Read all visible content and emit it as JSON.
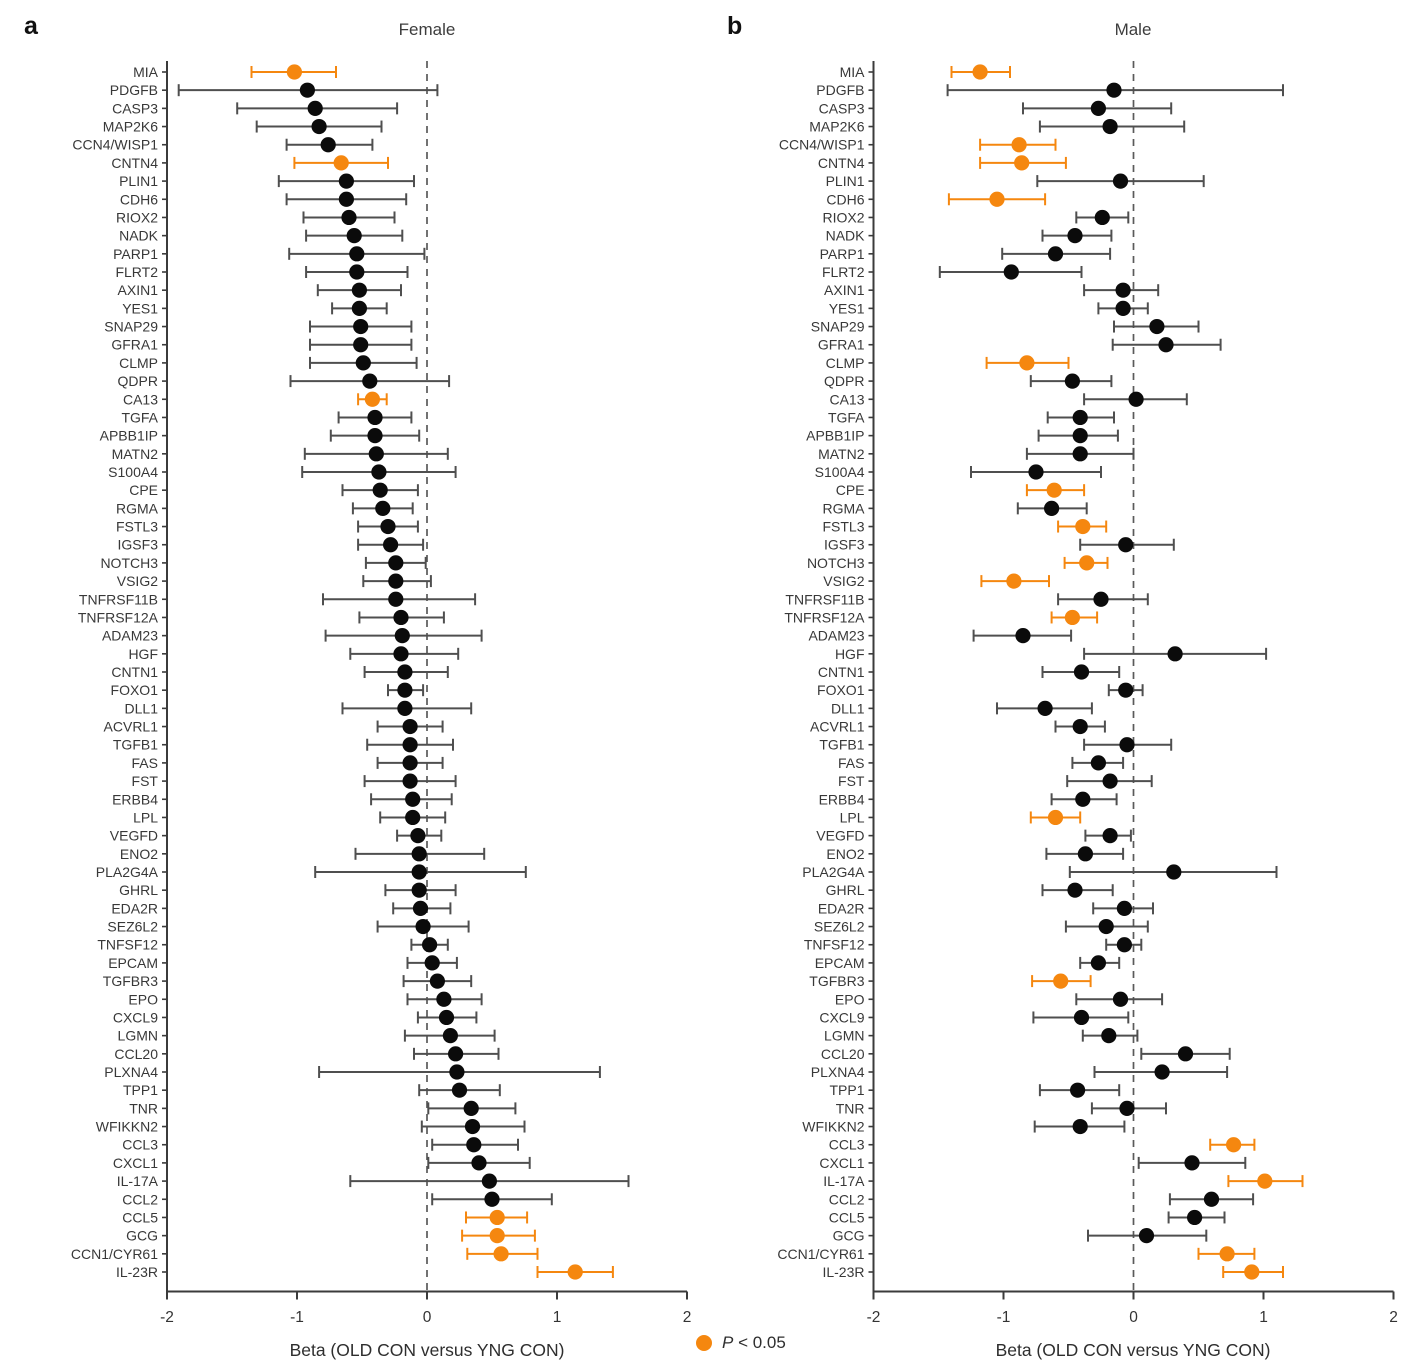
{
  "figure": {
    "panel_a": {
      "letter": "a",
      "title": "Female",
      "xlabel": "Beta (OLD CON versus YNG CON)"
    },
    "panel_b": {
      "letter": "b",
      "title": "Male",
      "xlabel": "Beta (OLD CON versus YNG CON)"
    },
    "legend": {
      "label_italic": "P",
      "label_rest": " < 0.05"
    }
  },
  "colors": {
    "significant": "#F5870F",
    "point": "#0b0b0b",
    "errorbar": "#4f4f4f",
    "spine": "#3b3b3b",
    "dashed": "#5a5a5a",
    "gene_text": "#383838",
    "tick_text": "#333333"
  },
  "chart_data": [
    {
      "type": "scatter",
      "subtype": "forest-plot",
      "panel": "a",
      "title": "Female",
      "xlabel": "Beta (OLD CON versus YNG CON)",
      "xlim": [
        -2,
        2
      ],
      "xticks": [
        "-2",
        "-1",
        "0",
        "1",
        "2"
      ],
      "zero_line": 0,
      "legend_note": "orange = P < 0.05",
      "categories": [
        "MIA",
        "PDGFB",
        "CASP3",
        "MAP2K6",
        "CCN4/WISP1",
        "CNTN4",
        "PLIN1",
        "CDH6",
        "RIOX2",
        "NADK",
        "PARP1",
        "FLRT2",
        "AXIN1",
        "YES1",
        "SNAP29",
        "GFRA1",
        "CLMP",
        "QDPR",
        "CA13",
        "TGFA",
        "APBB1IP",
        "MATN2",
        "S100A4",
        "CPE",
        "RGMA",
        "FSTL3",
        "IGSF3",
        "NOTCH3",
        "VSIG2",
        "TNFRSF11B",
        "TNFRSF12A",
        "ADAM23",
        "HGF",
        "CNTN1",
        "FOXO1",
        "DLL1",
        "ACVRL1",
        "TGFB1",
        "FAS",
        "FST",
        "ERBB4",
        "LPL",
        "VEGFD",
        "ENO2",
        "PLA2G4A",
        "GHRL",
        "EDA2R",
        "SEZ6L2",
        "TNFSF12",
        "EPCAM",
        "TGFBR3",
        "EPO",
        "CXCL9",
        "LGMN",
        "CCL20",
        "PLXNA4",
        "TPP1",
        "TNR",
        "WFIKKN2",
        "CCL3",
        "CXCL1",
        "IL-17A",
        "CCL2",
        "CCL5",
        "GCG",
        "CCN1/CYR61",
        "IL-23R"
      ],
      "points": [
        [
          -1.02,
          -1.35,
          -0.7,
          1
        ],
        [
          -0.92,
          -1.91,
          0.08,
          0
        ],
        [
          -0.86,
          -1.46,
          -0.23,
          0
        ],
        [
          -0.83,
          -1.31,
          -0.35,
          0
        ],
        [
          -0.76,
          -1.08,
          -0.42,
          0
        ],
        [
          -0.66,
          -1.02,
          -0.3,
          1
        ],
        [
          -0.62,
          -1.14,
          -0.1,
          0
        ],
        [
          -0.62,
          -1.08,
          -0.16,
          0
        ],
        [
          -0.6,
          -0.95,
          -0.25,
          0
        ],
        [
          -0.56,
          -0.93,
          -0.19,
          0
        ],
        [
          -0.54,
          -1.06,
          -0.02,
          0
        ],
        [
          -0.54,
          -0.93,
          -0.15,
          0
        ],
        [
          -0.52,
          -0.84,
          -0.2,
          0
        ],
        [
          -0.52,
          -0.73,
          -0.31,
          0
        ],
        [
          -0.51,
          -0.9,
          -0.12,
          0
        ],
        [
          -0.51,
          -0.9,
          -0.12,
          0
        ],
        [
          -0.49,
          -0.9,
          -0.08,
          0
        ],
        [
          -0.44,
          -1.05,
          0.17,
          0
        ],
        [
          -0.42,
          -0.53,
          -0.31,
          1
        ],
        [
          -0.4,
          -0.68,
          -0.12,
          0
        ],
        [
          -0.4,
          -0.74,
          -0.06,
          0
        ],
        [
          -0.39,
          -0.94,
          0.16,
          0
        ],
        [
          -0.37,
          -0.96,
          0.22,
          0
        ],
        [
          -0.36,
          -0.65,
          -0.07,
          0
        ],
        [
          -0.34,
          -0.57,
          -0.11,
          0
        ],
        [
          -0.3,
          -0.53,
          -0.07,
          0
        ],
        [
          -0.28,
          -0.53,
          -0.03,
          0
        ],
        [
          -0.24,
          -0.47,
          -0.01,
          0
        ],
        [
          -0.24,
          -0.49,
          0.03,
          0
        ],
        [
          -0.24,
          -0.8,
          0.37,
          0
        ],
        [
          -0.2,
          -0.52,
          0.13,
          0
        ],
        [
          -0.19,
          -0.78,
          0.42,
          0
        ],
        [
          -0.2,
          -0.59,
          0.24,
          0
        ],
        [
          -0.17,
          -0.48,
          0.16,
          0
        ],
        [
          -0.17,
          -0.3,
          -0.03,
          0
        ],
        [
          -0.17,
          -0.65,
          0.34,
          0
        ],
        [
          -0.13,
          -0.38,
          0.12,
          0
        ],
        [
          -0.13,
          -0.46,
          0.2,
          0
        ],
        [
          -0.13,
          -0.38,
          0.12,
          0
        ],
        [
          -0.13,
          -0.48,
          0.22,
          0
        ],
        [
          -0.11,
          -0.43,
          0.19,
          0
        ],
        [
          -0.11,
          -0.36,
          0.14,
          0
        ],
        [
          -0.07,
          -0.23,
          0.11,
          0
        ],
        [
          -0.06,
          -0.55,
          0.44,
          0
        ],
        [
          -0.06,
          -0.86,
          0.76,
          0
        ],
        [
          -0.06,
          -0.32,
          0.22,
          0
        ],
        [
          -0.05,
          -0.26,
          0.18,
          0
        ],
        [
          -0.03,
          -0.38,
          0.32,
          0
        ],
        [
          0.02,
          -0.12,
          0.16,
          0
        ],
        [
          0.04,
          -0.15,
          0.23,
          0
        ],
        [
          0.08,
          -0.18,
          0.34,
          0
        ],
        [
          0.13,
          -0.15,
          0.42,
          0
        ],
        [
          0.15,
          -0.07,
          0.38,
          0
        ],
        [
          0.18,
          -0.17,
          0.52,
          0
        ],
        [
          0.22,
          -0.1,
          0.55,
          0
        ],
        [
          0.23,
          -0.83,
          1.33,
          0
        ],
        [
          0.25,
          -0.06,
          0.56,
          0
        ],
        [
          0.34,
          0.01,
          0.68,
          0
        ],
        [
          0.35,
          -0.04,
          0.75,
          0
        ],
        [
          0.36,
          0.04,
          0.7,
          0
        ],
        [
          0.4,
          0.01,
          0.79,
          0
        ],
        [
          0.48,
          -0.59,
          1.55,
          0
        ],
        [
          0.5,
          0.04,
          0.96,
          0
        ],
        [
          0.54,
          0.3,
          0.77,
          1
        ],
        [
          0.54,
          0.27,
          0.83,
          1
        ],
        [
          0.57,
          0.31,
          0.85,
          1
        ],
        [
          1.14,
          0.85,
          1.43,
          1
        ]
      ]
    },
    {
      "type": "scatter",
      "subtype": "forest-plot",
      "panel": "b",
      "title": "Male",
      "xlabel": "Beta (OLD CON versus YNG CON)",
      "xlim": [
        -2,
        2
      ],
      "xticks": [
        "-2",
        "-1",
        "0",
        "1",
        "2"
      ],
      "zero_line": 0,
      "legend_note": "orange = P < 0.05",
      "categories": [
        "MIA",
        "PDGFB",
        "CASP3",
        "MAP2K6",
        "CCN4/WISP1",
        "CNTN4",
        "PLIN1",
        "CDH6",
        "RIOX2",
        "NADK",
        "PARP1",
        "FLRT2",
        "AXIN1",
        "YES1",
        "SNAP29",
        "GFRA1",
        "CLMP",
        "QDPR",
        "CA13",
        "TGFA",
        "APBB1IP",
        "MATN2",
        "S100A4",
        "CPE",
        "RGMA",
        "FSTL3",
        "IGSF3",
        "NOTCH3",
        "VSIG2",
        "TNFRSF11B",
        "TNFRSF12A",
        "ADAM23",
        "HGF",
        "CNTN1",
        "FOXO1",
        "DLL1",
        "ACVRL1",
        "TGFB1",
        "FAS",
        "FST",
        "ERBB4",
        "LPL",
        "VEGFD",
        "ENO2",
        "PLA2G4A",
        "GHRL",
        "EDA2R",
        "SEZ6L2",
        "TNFSF12",
        "EPCAM",
        "TGFBR3",
        "EPO",
        "CXCL9",
        "LGMN",
        "CCL20",
        "PLXNA4",
        "TPP1",
        "TNR",
        "WFIKKN2",
        "CCL3",
        "CXCL1",
        "IL-17A",
        "CCL2",
        "CCL5",
        "GCG",
        "CCN1/CYR61",
        "IL-23R"
      ],
      "points": [
        [
          -1.18,
          -1.4,
          -0.95,
          1
        ],
        [
          -0.15,
          -1.43,
          1.15,
          0
        ],
        [
          -0.27,
          -0.85,
          0.29,
          0
        ],
        [
          -0.18,
          -0.72,
          0.39,
          0
        ],
        [
          -0.88,
          -1.18,
          -0.6,
          1
        ],
        [
          -0.86,
          -1.18,
          -0.52,
          1
        ],
        [
          -0.1,
          -0.74,
          0.54,
          0
        ],
        [
          -1.05,
          -1.42,
          -0.68,
          1
        ],
        [
          -0.24,
          -0.44,
          -0.04,
          0
        ],
        [
          -0.45,
          -0.7,
          -0.17,
          0
        ],
        [
          -0.6,
          -1.01,
          -0.18,
          0
        ],
        [
          -0.94,
          -1.49,
          -0.4,
          0
        ],
        [
          -0.08,
          -0.38,
          0.19,
          0
        ],
        [
          -0.08,
          -0.27,
          0.11,
          0
        ],
        [
          0.18,
          -0.15,
          0.5,
          0
        ],
        [
          0.25,
          -0.16,
          0.67,
          0
        ],
        [
          -0.82,
          -1.13,
          -0.5,
          1
        ],
        [
          -0.47,
          -0.79,
          -0.17,
          0
        ],
        [
          0.02,
          -0.38,
          0.41,
          0
        ],
        [
          -0.41,
          -0.66,
          -0.15,
          0
        ],
        [
          -0.41,
          -0.73,
          -0.12,
          0
        ],
        [
          -0.41,
          -0.82,
          0.0,
          0
        ],
        [
          -0.75,
          -1.25,
          -0.25,
          0
        ],
        [
          -0.61,
          -0.82,
          -0.38,
          1
        ],
        [
          -0.63,
          -0.89,
          -0.36,
          0
        ],
        [
          -0.39,
          -0.58,
          -0.21,
          1
        ],
        [
          -0.06,
          -0.41,
          0.31,
          0
        ],
        [
          -0.36,
          -0.53,
          -0.2,
          1
        ],
        [
          -0.92,
          -1.17,
          -0.65,
          1
        ],
        [
          -0.25,
          -0.58,
          0.11,
          0
        ],
        [
          -0.47,
          -0.63,
          -0.28,
          1
        ],
        [
          -0.85,
          -1.23,
          -0.48,
          0
        ],
        [
          0.32,
          -0.38,
          1.02,
          0
        ],
        [
          -0.4,
          -0.7,
          -0.11,
          0
        ],
        [
          -0.06,
          -0.19,
          0.07,
          0
        ],
        [
          -0.68,
          -1.05,
          -0.32,
          0
        ],
        [
          -0.41,
          -0.6,
          -0.22,
          0
        ],
        [
          -0.05,
          -0.38,
          0.29,
          0
        ],
        [
          -0.27,
          -0.47,
          -0.08,
          0
        ],
        [
          -0.18,
          -0.51,
          0.14,
          0
        ],
        [
          -0.39,
          -0.63,
          -0.13,
          0
        ],
        [
          -0.6,
          -0.79,
          -0.41,
          1
        ],
        [
          -0.18,
          -0.37,
          -0.02,
          0
        ],
        [
          -0.37,
          -0.67,
          -0.08,
          0
        ],
        [
          0.31,
          -0.49,
          1.1,
          0
        ],
        [
          -0.45,
          -0.7,
          -0.16,
          0
        ],
        [
          -0.07,
          -0.31,
          0.15,
          0
        ],
        [
          -0.21,
          -0.52,
          0.11,
          0
        ],
        [
          -0.07,
          -0.21,
          0.06,
          0
        ],
        [
          -0.27,
          -0.41,
          -0.11,
          0
        ],
        [
          -0.56,
          -0.78,
          -0.33,
          1
        ],
        [
          -0.1,
          -0.44,
          0.22,
          0
        ],
        [
          -0.4,
          -0.77,
          -0.04,
          0
        ],
        [
          -0.19,
          -0.39,
          0.03,
          0
        ],
        [
          0.4,
          0.06,
          0.74,
          0
        ],
        [
          0.22,
          -0.3,
          0.72,
          0
        ],
        [
          -0.43,
          -0.72,
          -0.11,
          0
        ],
        [
          -0.05,
          -0.32,
          0.25,
          0
        ],
        [
          -0.41,
          -0.76,
          -0.07,
          0
        ],
        [
          0.77,
          0.59,
          0.93,
          1
        ],
        [
          0.45,
          0.04,
          0.86,
          0
        ],
        [
          1.01,
          0.73,
          1.3,
          1
        ],
        [
          0.6,
          0.28,
          0.92,
          0
        ],
        [
          0.47,
          0.27,
          0.7,
          0
        ],
        [
          0.1,
          -0.35,
          0.56,
          0
        ],
        [
          0.72,
          0.5,
          0.93,
          1
        ],
        [
          0.91,
          0.69,
          1.15,
          1
        ]
      ]
    }
  ]
}
